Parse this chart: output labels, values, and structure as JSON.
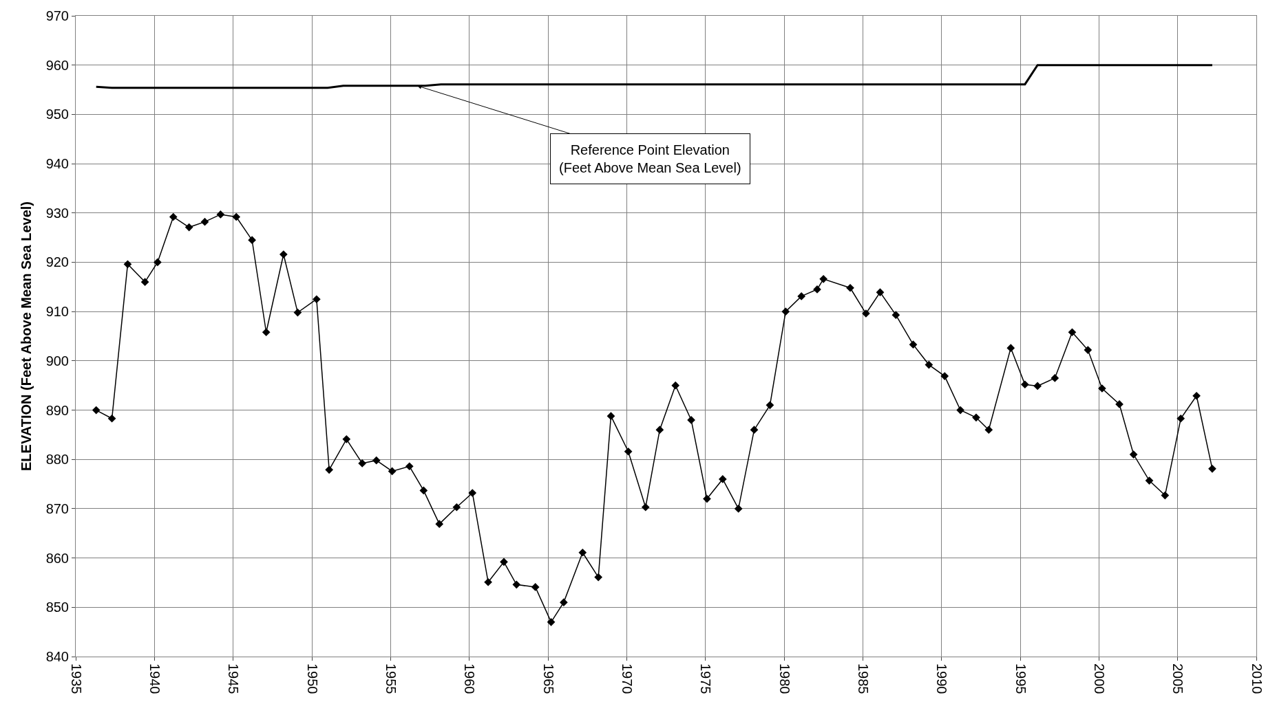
{
  "chart_data": {
    "type": "line",
    "ylabel": "ELEVATION (Feet Above Mean Sea Level)",
    "xlim": [
      1935,
      2010
    ],
    "xticks": [
      1935,
      1940,
      1945,
      1950,
      1955,
      1960,
      1965,
      1970,
      1975,
      1980,
      1985,
      1990,
      1995,
      2000,
      2005,
      2010
    ],
    "ylim": [
      840,
      970
    ],
    "yticks": [
      840,
      850,
      860,
      870,
      880,
      890,
      900,
      910,
      920,
      930,
      940,
      950,
      960,
      970
    ],
    "grid": true,
    "series": [
      {
        "marker": "diamond",
        "color": "#000000",
        "x": [
          1936.3,
          1937.3,
          1938.3,
          1939.4,
          1940.2,
          1941.2,
          1942.2,
          1943.2,
          1944.2,
          1945.2,
          1946.2,
          1947.1,
          1948.2,
          1949.1,
          1950.3,
          1951.1,
          1952.2,
          1953.2,
          1954.1,
          1955.1,
          1956.2,
          1957.1,
          1958.1,
          1959.2,
          1960.2,
          1961.2,
          1962.2,
          1963.0,
          1964.2,
          1965.2,
          1966.0,
          1967.2,
          1968.2,
          1969.0,
          1970.1,
          1971.2,
          1972.1,
          1973.1,
          1974.1,
          1975.1,
          1976.1,
          1977.1,
          1978.1,
          1979.1,
          1980.1,
          1981.1,
          1982.1,
          1982.5,
          1984.2,
          1985.2,
          1986.1,
          1987.1,
          1988.2,
          1989.2,
          1990.2,
          1991.2,
          1992.2,
          1993.0,
          1994.4,
          1995.3,
          1996.1,
          1997.2,
          1998.3,
          1999.3,
          2000.2,
          2001.3,
          2002.2,
          2003.2,
          2004.2,
          2005.2,
          2006.2,
          2007.2
        ],
        "values": [
          890,
          888.3,
          919.6,
          916,
          920,
          929.2,
          927.1,
          928.2,
          929.7,
          929.2,
          924.5,
          905.8,
          921.6,
          909.8,
          912.5,
          877.9,
          884.1,
          879.2,
          879.8,
          877.6,
          878.6,
          873.7,
          866.9,
          870.3,
          873.2,
          855.1,
          859.2,
          854.6,
          854.1,
          847.0,
          851.0,
          861.1,
          856.1,
          888.8,
          881.6,
          870.3,
          886.0,
          895.0,
          888.0,
          872.0,
          876.0,
          870.0,
          886.0,
          891.0,
          910.0,
          913.1,
          914.5,
          916.6,
          914.8,
          909.6,
          913.9,
          909.3,
          903.3,
          899.2,
          896.9,
          890.0,
          888.5,
          886.0,
          902.6,
          895.2,
          894.9,
          896.5,
          905.8,
          902.2,
          894.4,
          891.2,
          881.0,
          875.7,
          872.7,
          888.3,
          892.9,
          878.1
        ]
      },
      {
        "marker": "none",
        "color": "#000000",
        "x": [
          1936.3,
          1937.3,
          1951.0,
          1952.0,
          1957.2,
          1958.2,
          1995.3,
          1996.1,
          2007.2
        ],
        "values": [
          955.6,
          955.4,
          955.4,
          955.8,
          955.8,
          956.1,
          956.1,
          960,
          960
        ]
      }
    ],
    "annotations": [
      {
        "text": "Reference Point Elevation\n(Feet Above Mean Sea Level)",
        "x": 1956.7,
        "y": 955.8
      }
    ]
  }
}
